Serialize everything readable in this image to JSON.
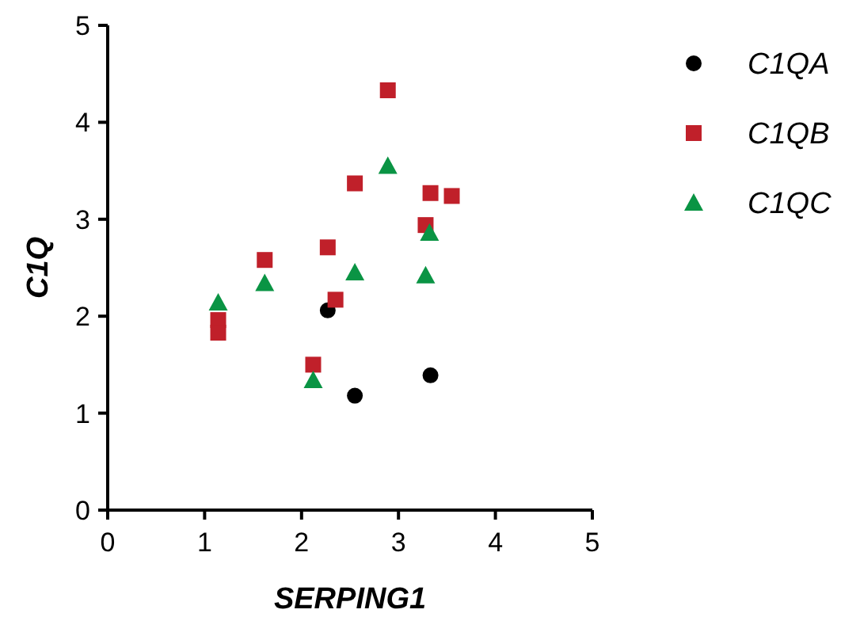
{
  "chart_data": {
    "type": "scatter",
    "xlabel": "SERPING1",
    "ylabel": "C1Q",
    "xlim": [
      0,
      5
    ],
    "ylim": [
      0,
      5
    ],
    "xticks": [
      0,
      1,
      2,
      3,
      4,
      5
    ],
    "yticks": [
      0,
      1,
      2,
      3,
      4,
      5
    ],
    "grid": false,
    "legend": "right",
    "series": [
      {
        "name": "C1QA",
        "color": "#000000",
        "marker": "circle",
        "x": [
          2.27,
          2.55,
          3.33
        ],
        "values": [
          2.06,
          1.18,
          1.39
        ]
      },
      {
        "name": "C1QB",
        "color": "#c0202a",
        "marker": "square",
        "x": [
          1.14,
          1.14,
          1.62,
          2.12,
          2.27,
          2.35,
          2.55,
          2.89,
          3.28,
          3.33,
          3.55
        ],
        "values": [
          1.96,
          1.83,
          2.58,
          1.5,
          2.71,
          2.17,
          3.37,
          4.33,
          2.94,
          3.27,
          3.24
        ]
      },
      {
        "name": "C1QC",
        "color": "#0a9444",
        "marker": "triangle",
        "x": [
          1.14,
          1.62,
          2.12,
          2.55,
          2.89,
          3.32,
          3.28
        ],
        "values": [
          2.14,
          2.34,
          1.34,
          2.45,
          3.55,
          2.86,
          2.42
        ]
      }
    ]
  }
}
